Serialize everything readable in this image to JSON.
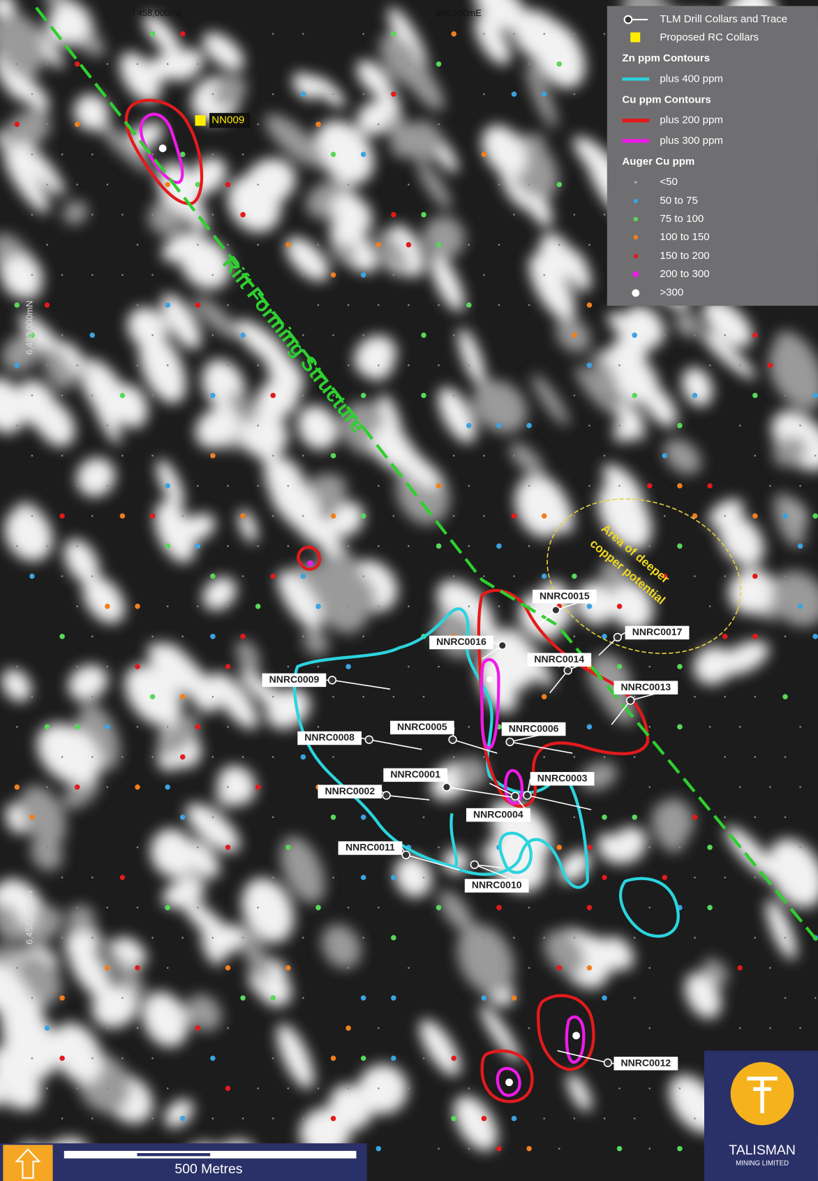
{
  "grid_labels": {
    "easting": [
      "458,000mE",
      "458,500mE"
    ],
    "northing": [
      "6,453,000mN",
      "6,452,000mN"
    ]
  },
  "legend": {
    "entries": [
      "TLM Drill Collars and Trace",
      "Proposed RC Collars",
      "Zn ppm Contours",
      "plus 400 ppm",
      "Cu ppm Contours",
      "plus 200 ppm",
      "plus 300 ppm",
      "Auger Cu ppm",
      "<50",
      "50 to 75",
      "75 to 100",
      "100 to 150",
      "150 to 200",
      "200 to 300",
      ">300"
    ]
  },
  "annotations": {
    "structure": "Rift Forming Structure",
    "potential": [
      "Area of deeper",
      "copper potential"
    ]
  },
  "proposed_collar": "NN009",
  "drill_holes": [
    "NNRC0015",
    "NNRC0016",
    "NNRC0017",
    "NNRC0009",
    "NNRC0014",
    "NNRC0013",
    "NNRC0008",
    "NNRC0005",
    "NNRC0006",
    "NNRC0001",
    "NNRC0003",
    "NNRC0002",
    "NNRC0004",
    "NNRC0011",
    "NNRC0010",
    "NNRC0012"
  ],
  "scale_bar": "500 Metres",
  "logo": [
    "TALISMAN",
    "MINING LIMITED"
  ]
}
